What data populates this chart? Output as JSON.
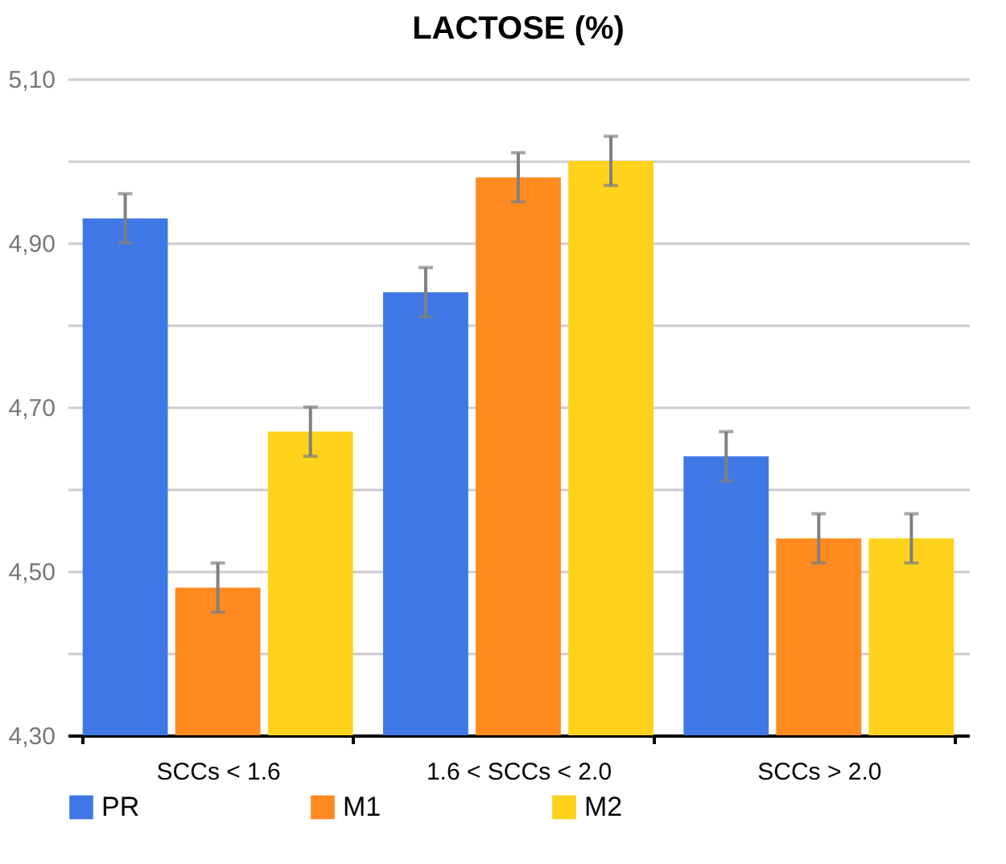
{
  "chart_data": {
    "type": "bar",
    "title": "LACTOSE (%)",
    "categories": [
      "SCCs < 1.6",
      "1.6 < SCCs < 2.0",
      "SCCs > 2.0"
    ],
    "series": [
      {
        "name": "PR",
        "color": "#3f78e6",
        "values": [
          4.93,
          4.84,
          4.64
        ],
        "errors": [
          0.03,
          0.03,
          0.03
        ]
      },
      {
        "name": "M1",
        "color": "#ff8a1f",
        "values": [
          4.48,
          4.98,
          4.54
        ],
        "errors": [
          0.03,
          0.03,
          0.03
        ]
      },
      {
        "name": "M2",
        "color": "#ffd21c",
        "values": [
          4.67,
          5.0,
          4.54
        ],
        "errors": [
          0.03,
          0.03,
          0.03
        ]
      }
    ],
    "ylim": [
      4.3,
      5.1
    ],
    "yticks": [
      {
        "value": 4.3,
        "label": "4,30"
      },
      {
        "value": 4.4,
        "label": null
      },
      {
        "value": 4.5,
        "label": "4,50"
      },
      {
        "value": 4.6,
        "label": null
      },
      {
        "value": 4.7,
        "label": "4,70"
      },
      {
        "value": 4.8,
        "label": null
      },
      {
        "value": 4.9,
        "label": "4,90"
      },
      {
        "value": 5.0,
        "label": null
      },
      {
        "value": 5.1,
        "label": "5,10"
      }
    ],
    "grid": true,
    "legend": "bottom"
  }
}
